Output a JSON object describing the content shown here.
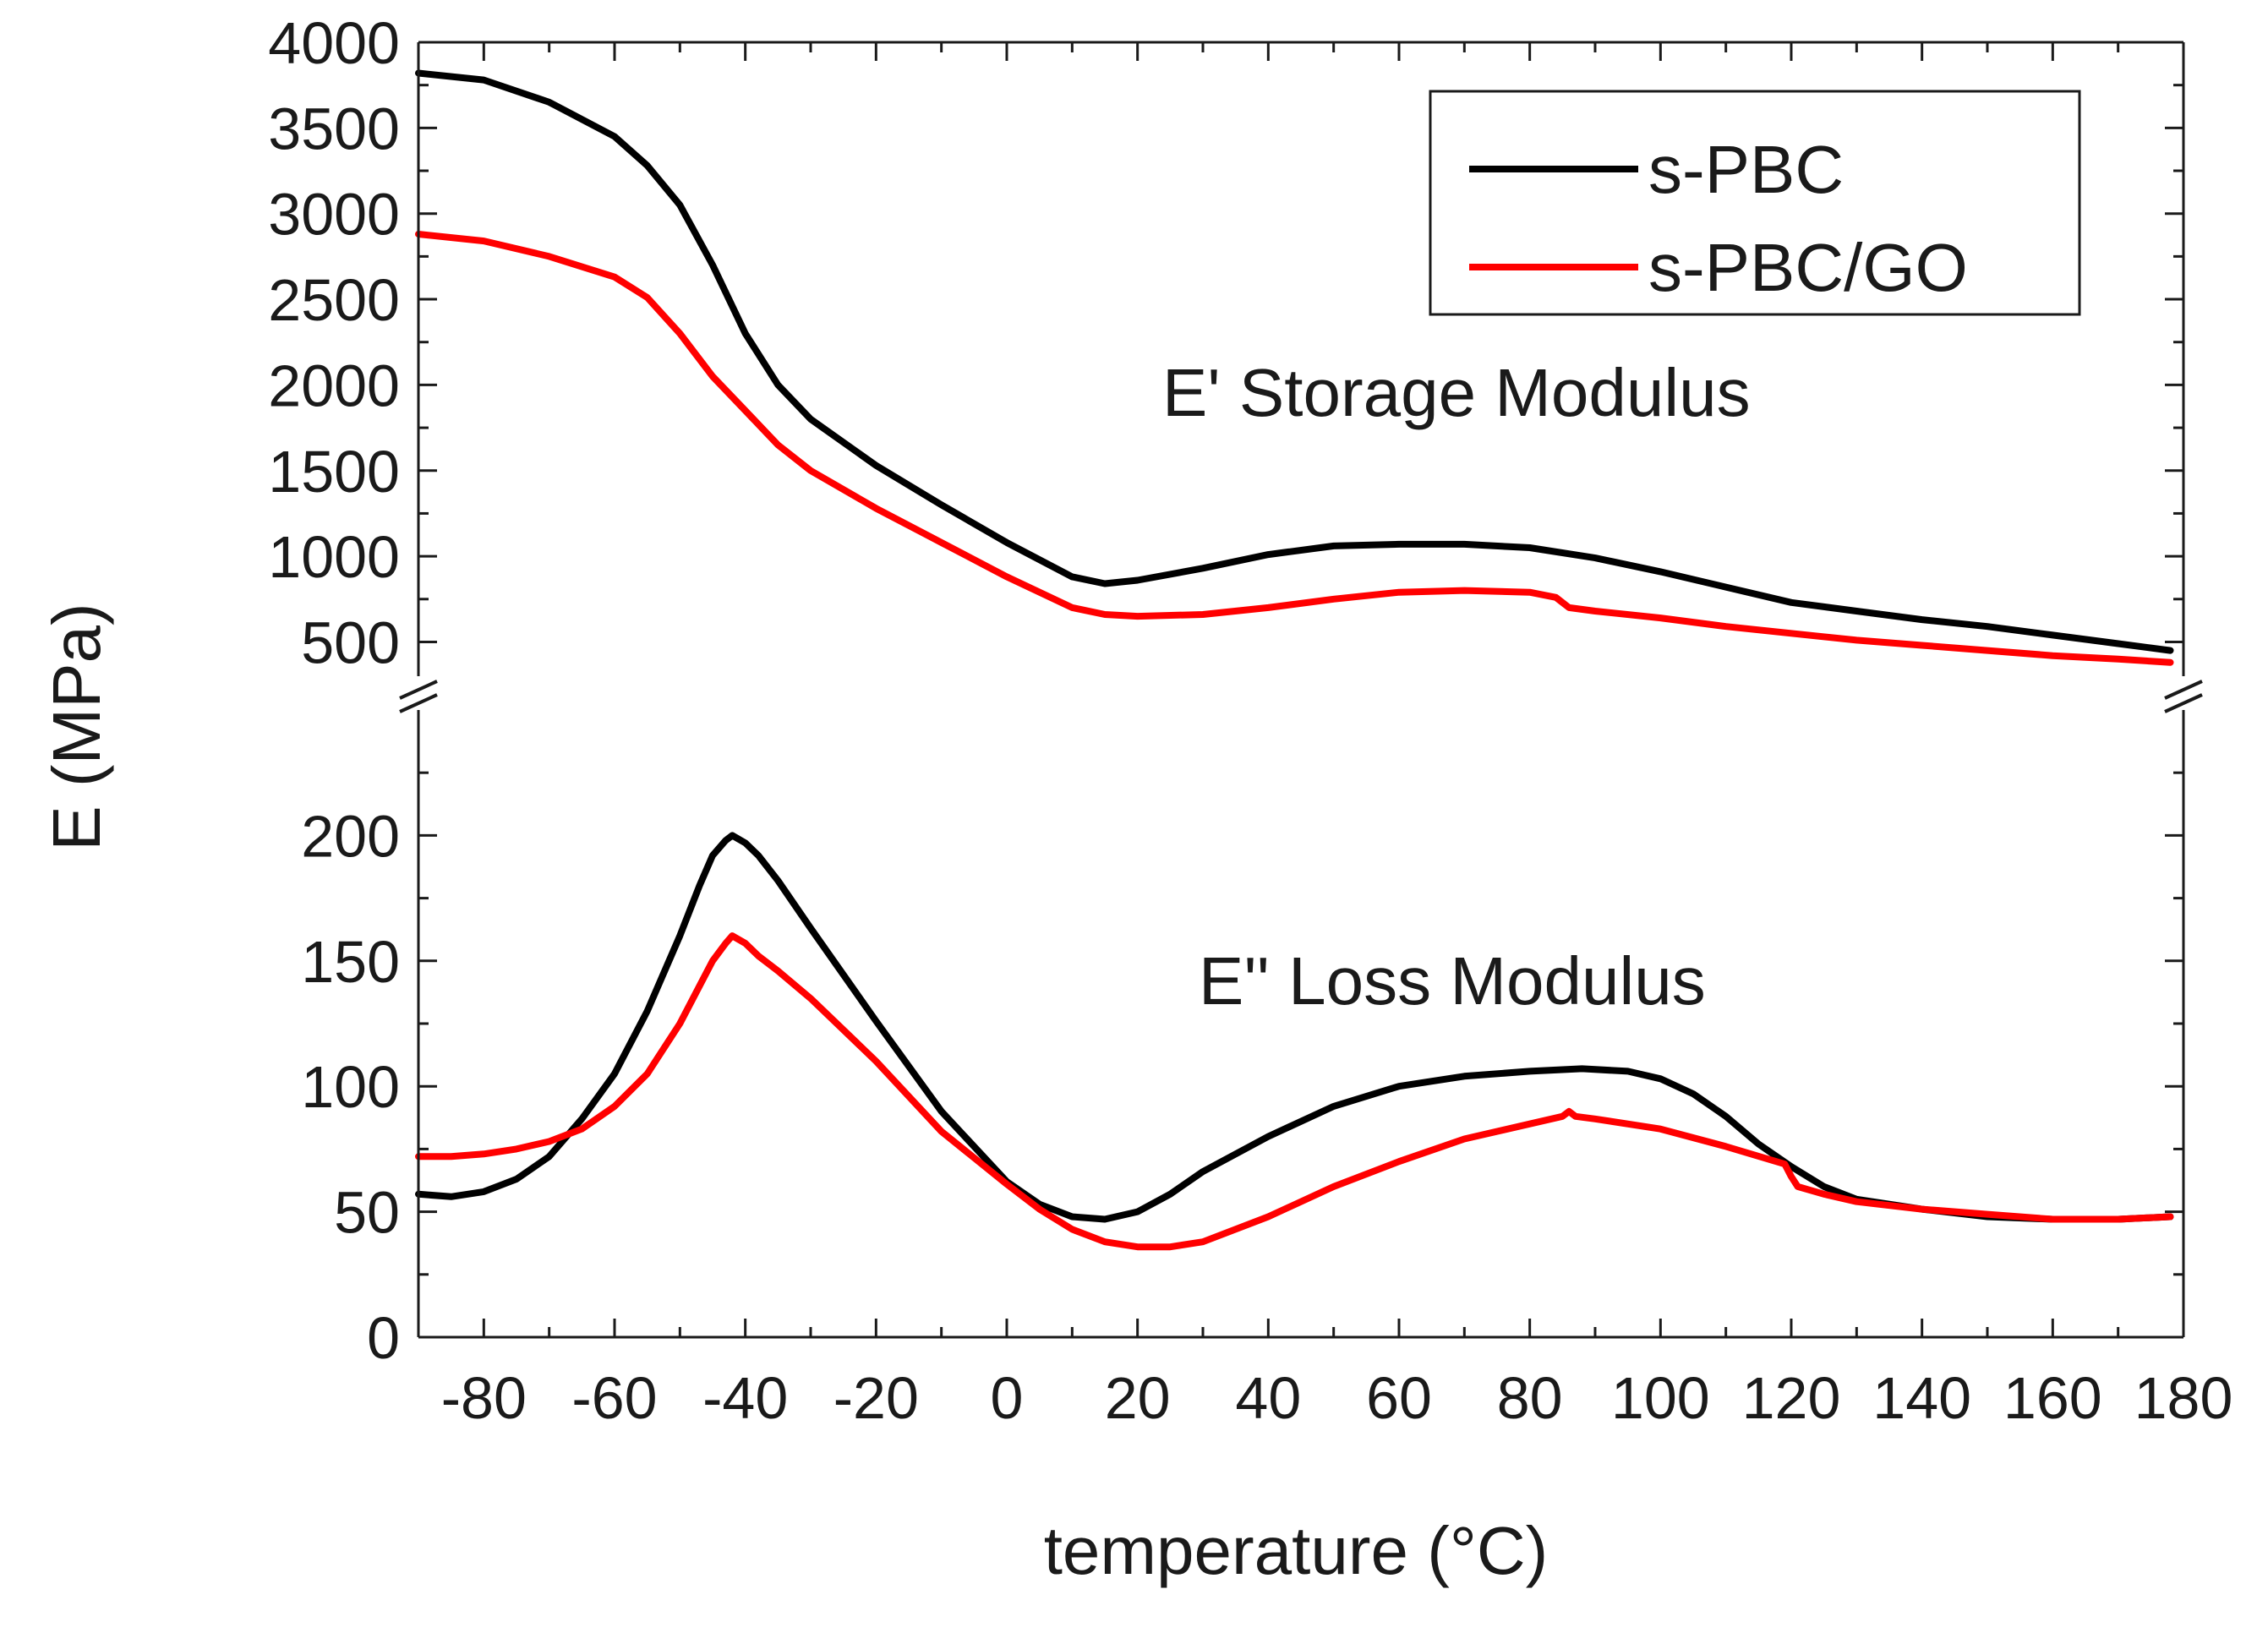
{
  "chart_data": {
    "type": "line",
    "title": "",
    "xlabel": "temperature (°C)",
    "ylabel": "E (MPa)",
    "xlim": [
      -90,
      180
    ],
    "x_ticks": [
      -80,
      -60,
      -40,
      -20,
      0,
      20,
      40,
      60,
      80,
      100,
      120,
      140,
      160,
      180
    ],
    "broken_y_axis": true,
    "upper_panel": {
      "annotation": "E' Storage Modulus",
      "ylim": [
        300,
        4000
      ],
      "y_ticks": [
        500,
        1000,
        1500,
        2000,
        2500,
        3000,
        3500,
        4000
      ]
    },
    "lower_panel": {
      "annotation": "E'' Loss Modulus",
      "ylim": [
        0,
        250
      ],
      "y_ticks": [
        0,
        50,
        100,
        150,
        200
      ]
    },
    "legend": {
      "position": "top-right",
      "entries": [
        {
          "label": "s-PBC",
          "color": "#000000"
        },
        {
          "label": "s-PBC/GO",
          "color": "#ff0000"
        }
      ]
    },
    "series": [
      {
        "name": "s-PBC",
        "panel": "upper",
        "color": "#000000",
        "x": [
          -90,
          -80,
          -70,
          -60,
          -55,
          -50,
          -45,
          -40,
          -35,
          -30,
          -20,
          -10,
          0,
          10,
          15,
          20,
          30,
          40,
          50,
          60,
          70,
          80,
          90,
          100,
          110,
          120,
          130,
          140,
          150,
          160,
          170,
          178
        ],
        "y": [
          3820,
          3780,
          3650,
          3450,
          3280,
          3050,
          2700,
          2300,
          2000,
          1800,
          1530,
          1300,
          1080,
          880,
          840,
          860,
          930,
          1010,
          1060,
          1070,
          1070,
          1050,
          990,
          910,
          820,
          730,
          680,
          630,
          590,
          540,
          490,
          450
        ]
      },
      {
        "name": "s-PBC/GO",
        "panel": "upper",
        "color": "#ff0000",
        "x": [
          -90,
          -80,
          -70,
          -60,
          -55,
          -50,
          -45,
          -40,
          -35,
          -30,
          -20,
          -10,
          0,
          10,
          15,
          20,
          30,
          40,
          50,
          60,
          70,
          80,
          84,
          86,
          90,
          100,
          110,
          120,
          130,
          140,
          150,
          160,
          170,
          178
        ],
        "y": [
          2880,
          2840,
          2750,
          2630,
          2510,
          2300,
          2050,
          1850,
          1650,
          1500,
          1280,
          1080,
          880,
          700,
          660,
          650,
          660,
          700,
          750,
          790,
          800,
          790,
          760,
          700,
          680,
          640,
          590,
          550,
          510,
          480,
          450,
          420,
          400,
          380
        ]
      },
      {
        "name": "s-PBC",
        "panel": "lower",
        "color": "#000000",
        "x": [
          -90,
          -85,
          -80,
          -75,
          -70,
          -65,
          -60,
          -55,
          -50,
          -47,
          -45,
          -43,
          -42,
          -40,
          -38,
          -35,
          -30,
          -20,
          -10,
          0,
          5,
          10,
          15,
          20,
          25,
          30,
          40,
          50,
          60,
          70,
          80,
          88,
          95,
          100,
          105,
          110,
          115,
          120,
          125,
          130,
          140,
          150,
          160,
          170,
          178
        ],
        "y": [
          57,
          56,
          58,
          63,
          72,
          87,
          105,
          130,
          160,
          180,
          192,
          198,
          200,
          197,
          192,
          182,
          163,
          126,
          90,
          62,
          53,
          48,
          47,
          50,
          57,
          66,
          80,
          92,
          100,
          104,
          106,
          107,
          106,
          103,
          97,
          88,
          77,
          68,
          60,
          55,
          51,
          48,
          47,
          47,
          48
        ]
      },
      {
        "name": "s-PBC/GO",
        "panel": "lower",
        "color": "#ff0000",
        "x": [
          -90,
          -85,
          -80,
          -75,
          -70,
          -65,
          -60,
          -55,
          -50,
          -47,
          -45,
          -43,
          -42,
          -40,
          -38,
          -35,
          -30,
          -20,
          -10,
          0,
          5,
          10,
          15,
          20,
          25,
          30,
          40,
          50,
          60,
          70,
          80,
          85,
          86,
          87,
          90,
          100,
          110,
          119,
          120,
          121,
          125,
          130,
          140,
          150,
          160,
          170,
          178
        ],
        "y": [
          72,
          72,
          73,
          75,
          78,
          83,
          92,
          105,
          125,
          140,
          150,
          157,
          160,
          157,
          152,
          146,
          135,
          110,
          82,
          61,
          51,
          43,
          38,
          36,
          36,
          38,
          48,
          60,
          70,
          79,
          85,
          88,
          90,
          88,
          87,
          83,
          76,
          69,
          64,
          60,
          57,
          54,
          51,
          49,
          47,
          47,
          48
        ]
      }
    ]
  }
}
